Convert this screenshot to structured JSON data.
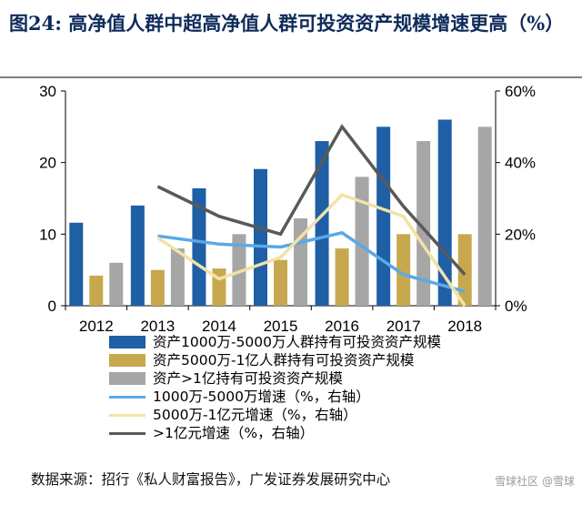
{
  "title": "图24:  高净值人群中超高净值人群可投资资产规模增速更高（%）",
  "source": "数据来源：招行《私人财富报告》，广发证券发展研究中心",
  "watermark": "雪球社区 @雪球",
  "colors": {
    "title": "#0f2b5b",
    "bar1": "#1f5fa6",
    "bar2": "#c7a84e",
    "bar3": "#a6a6a6",
    "line1": "#5aa9e6",
    "line2": "#f2e2a6",
    "line3": "#595959"
  },
  "chart_data": {
    "type": "bar",
    "categories": [
      "2012",
      "2013",
      "2014",
      "2015",
      "2016",
      "2017",
      "2018"
    ],
    "left_axis": {
      "ylim": [
        0,
        30
      ],
      "ticks": [
        "0",
        "10",
        "20",
        "30"
      ]
    },
    "right_axis": {
      "ylim": [
        0,
        60
      ],
      "ticks": [
        "0%",
        "20%",
        "40%",
        "60%"
      ]
    },
    "bars": [
      {
        "name": "资产1000万-5000万人群持有可投资资产规模",
        "values": [
          11.6,
          14.0,
          16.4,
          19.1,
          23.0,
          25.0,
          26.0
        ]
      },
      {
        "name": "资产5000万-1亿人群持有可投资资产规模",
        "values": [
          4.2,
          5.0,
          5.2,
          6.4,
          8.0,
          10.0,
          10.0
        ]
      },
      {
        "name": "资产>1亿持有可投资资产规模",
        "values": [
          6.0,
          8.0,
          10.0,
          12.2,
          18.0,
          23.0,
          25.0
        ]
      }
    ],
    "lines": [
      {
        "name": "1000万-5000万增速（%，右轴）",
        "values": [
          null,
          19.5,
          17.2,
          16.4,
          20.4,
          8.7,
          4.0
        ]
      },
      {
        "name": "5000万-1亿元增速（%，右轴）",
        "values": [
          null,
          19.0,
          7.5,
          13.5,
          31.0,
          25.0,
          0.0
        ]
      },
      {
        "name": ">1亿元增速（%，右轴）",
        "values": [
          null,
          33.3,
          25.0,
          20.0,
          50.0,
          27.8,
          8.7
        ]
      }
    ]
  }
}
